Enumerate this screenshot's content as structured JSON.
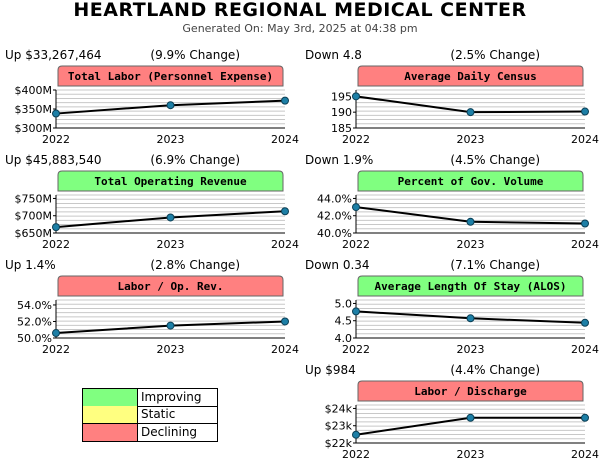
{
  "header": {
    "title": "HEARTLAND REGIONAL MEDICAL CENTER",
    "generated": "Generated On: May 3rd, 2025 at 04:38 pm"
  },
  "colors": {
    "improving": "#80ff80",
    "static": "#ffff80",
    "declining": "#ff8080",
    "line": "#000000",
    "marker": "#1d7fa6"
  },
  "legend": [
    {
      "label": "Improving",
      "color": "#80ff80"
    },
    {
      "label": "Static",
      "color": "#ffff80"
    },
    {
      "label": "Declining",
      "color": "#ff8080"
    }
  ],
  "chart_data": [
    {
      "type": "line",
      "title": "Total Labor (Personnel Expense)",
      "status": "declining",
      "change_left": "Up $33,267,464",
      "change_right": "(9.9% Change)",
      "x": [
        "2022",
        "2023",
        "2024"
      ],
      "values": [
        338000000,
        360000000,
        372000000
      ],
      "ylim": [
        300000000,
        400000000
      ],
      "yticks": [
        300000000,
        350000000,
        400000000
      ],
      "yticklabels": [
        "$300M",
        "$350M",
        "$400M"
      ]
    },
    {
      "type": "line",
      "title": "Average Daily Census",
      "status": "declining",
      "change_left": "Down 4.8",
      "change_right": "(2.5% Change)",
      "x": [
        "2022",
        "2023",
        "2024"
      ],
      "values": [
        195,
        190,
        190.2
      ],
      "ylim": [
        185,
        197
      ],
      "yticks": [
        185,
        190,
        195
      ],
      "yticklabels": [
        "185",
        "190",
        "195"
      ]
    },
    {
      "type": "line",
      "title": "Total Operating Revenue",
      "status": "improving",
      "change_left": "Up $45,883,540",
      "change_right": "(6.9% Change)",
      "x": [
        "2022",
        "2023",
        "2024"
      ],
      "values": [
        667000000,
        695000000,
        713000000
      ],
      "ylim": [
        650000000,
        760000000
      ],
      "yticks": [
        650000000,
        700000000,
        750000000
      ],
      "yticklabels": [
        "$650M",
        "$700M",
        "$750M"
      ]
    },
    {
      "type": "line",
      "title": "Percent of Gov. Volume",
      "status": "improving",
      "change_left": "Down 1.9%",
      "change_right": "(4.5% Change)",
      "x": [
        "2022",
        "2023",
        "2024"
      ],
      "values": [
        43.0,
        41.3,
        41.1
      ],
      "ylim": [
        40.0,
        44.4
      ],
      "yticks": [
        40.0,
        42.0,
        44.0
      ],
      "yticklabels": [
        "40.0%",
        "42.0%",
        "44.0%"
      ]
    },
    {
      "type": "line",
      "title": "Labor / Op. Rev.",
      "status": "declining",
      "change_left": "Up 1.4%",
      "change_right": "(2.8% Change)",
      "x": [
        "2022",
        "2023",
        "2024"
      ],
      "values": [
        50.6,
        51.5,
        52.0
      ],
      "ylim": [
        50.0,
        54.6
      ],
      "yticks": [
        50.0,
        52.0,
        54.0
      ],
      "yticklabels": [
        "50.0%",
        "52.0%",
        "54.0%"
      ]
    },
    {
      "type": "line",
      "title": "Average Length Of Stay (ALOS)",
      "status": "improving",
      "change_left": "Down 0.34",
      "change_right": "(7.1% Change)",
      "x": [
        "2022",
        "2023",
        "2024"
      ],
      "values": [
        4.77,
        4.57,
        4.44
      ],
      "ylim": [
        4.0,
        5.1
      ],
      "yticks": [
        4.0,
        4.5,
        5.0
      ],
      "yticklabels": [
        "4.0",
        "4.5",
        "5.0"
      ]
    },
    {
      "type": "line",
      "title": "Labor / Discharge",
      "status": "declining",
      "change_left": "Up $984",
      "change_right": "(4.4% Change)",
      "x": [
        "2022",
        "2023",
        "2024"
      ],
      "values": [
        22480,
        23460,
        23460
      ],
      "ylim": [
        22000,
        24200
      ],
      "yticks": [
        22000,
        23000,
        24000
      ],
      "yticklabels": [
        "$22k",
        "$23k",
        "$24k"
      ]
    }
  ]
}
